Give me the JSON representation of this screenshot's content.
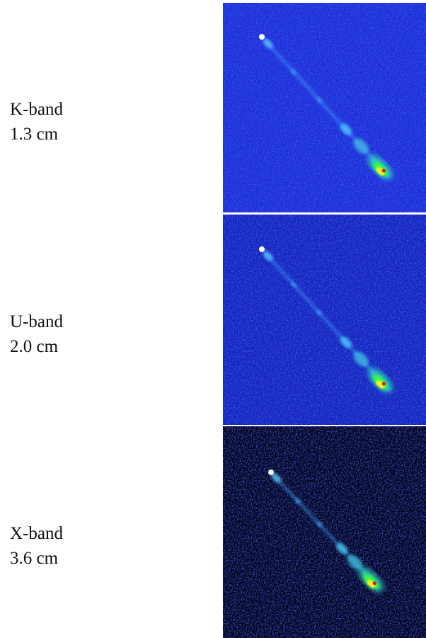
{
  "panels": [
    {
      "band": "K-band",
      "wavelength": "1.3 cm"
    },
    {
      "band": "U-band",
      "wavelength": "2.0 cm"
    },
    {
      "band": "X-band",
      "wavelength": "3.6 cm"
    }
  ]
}
